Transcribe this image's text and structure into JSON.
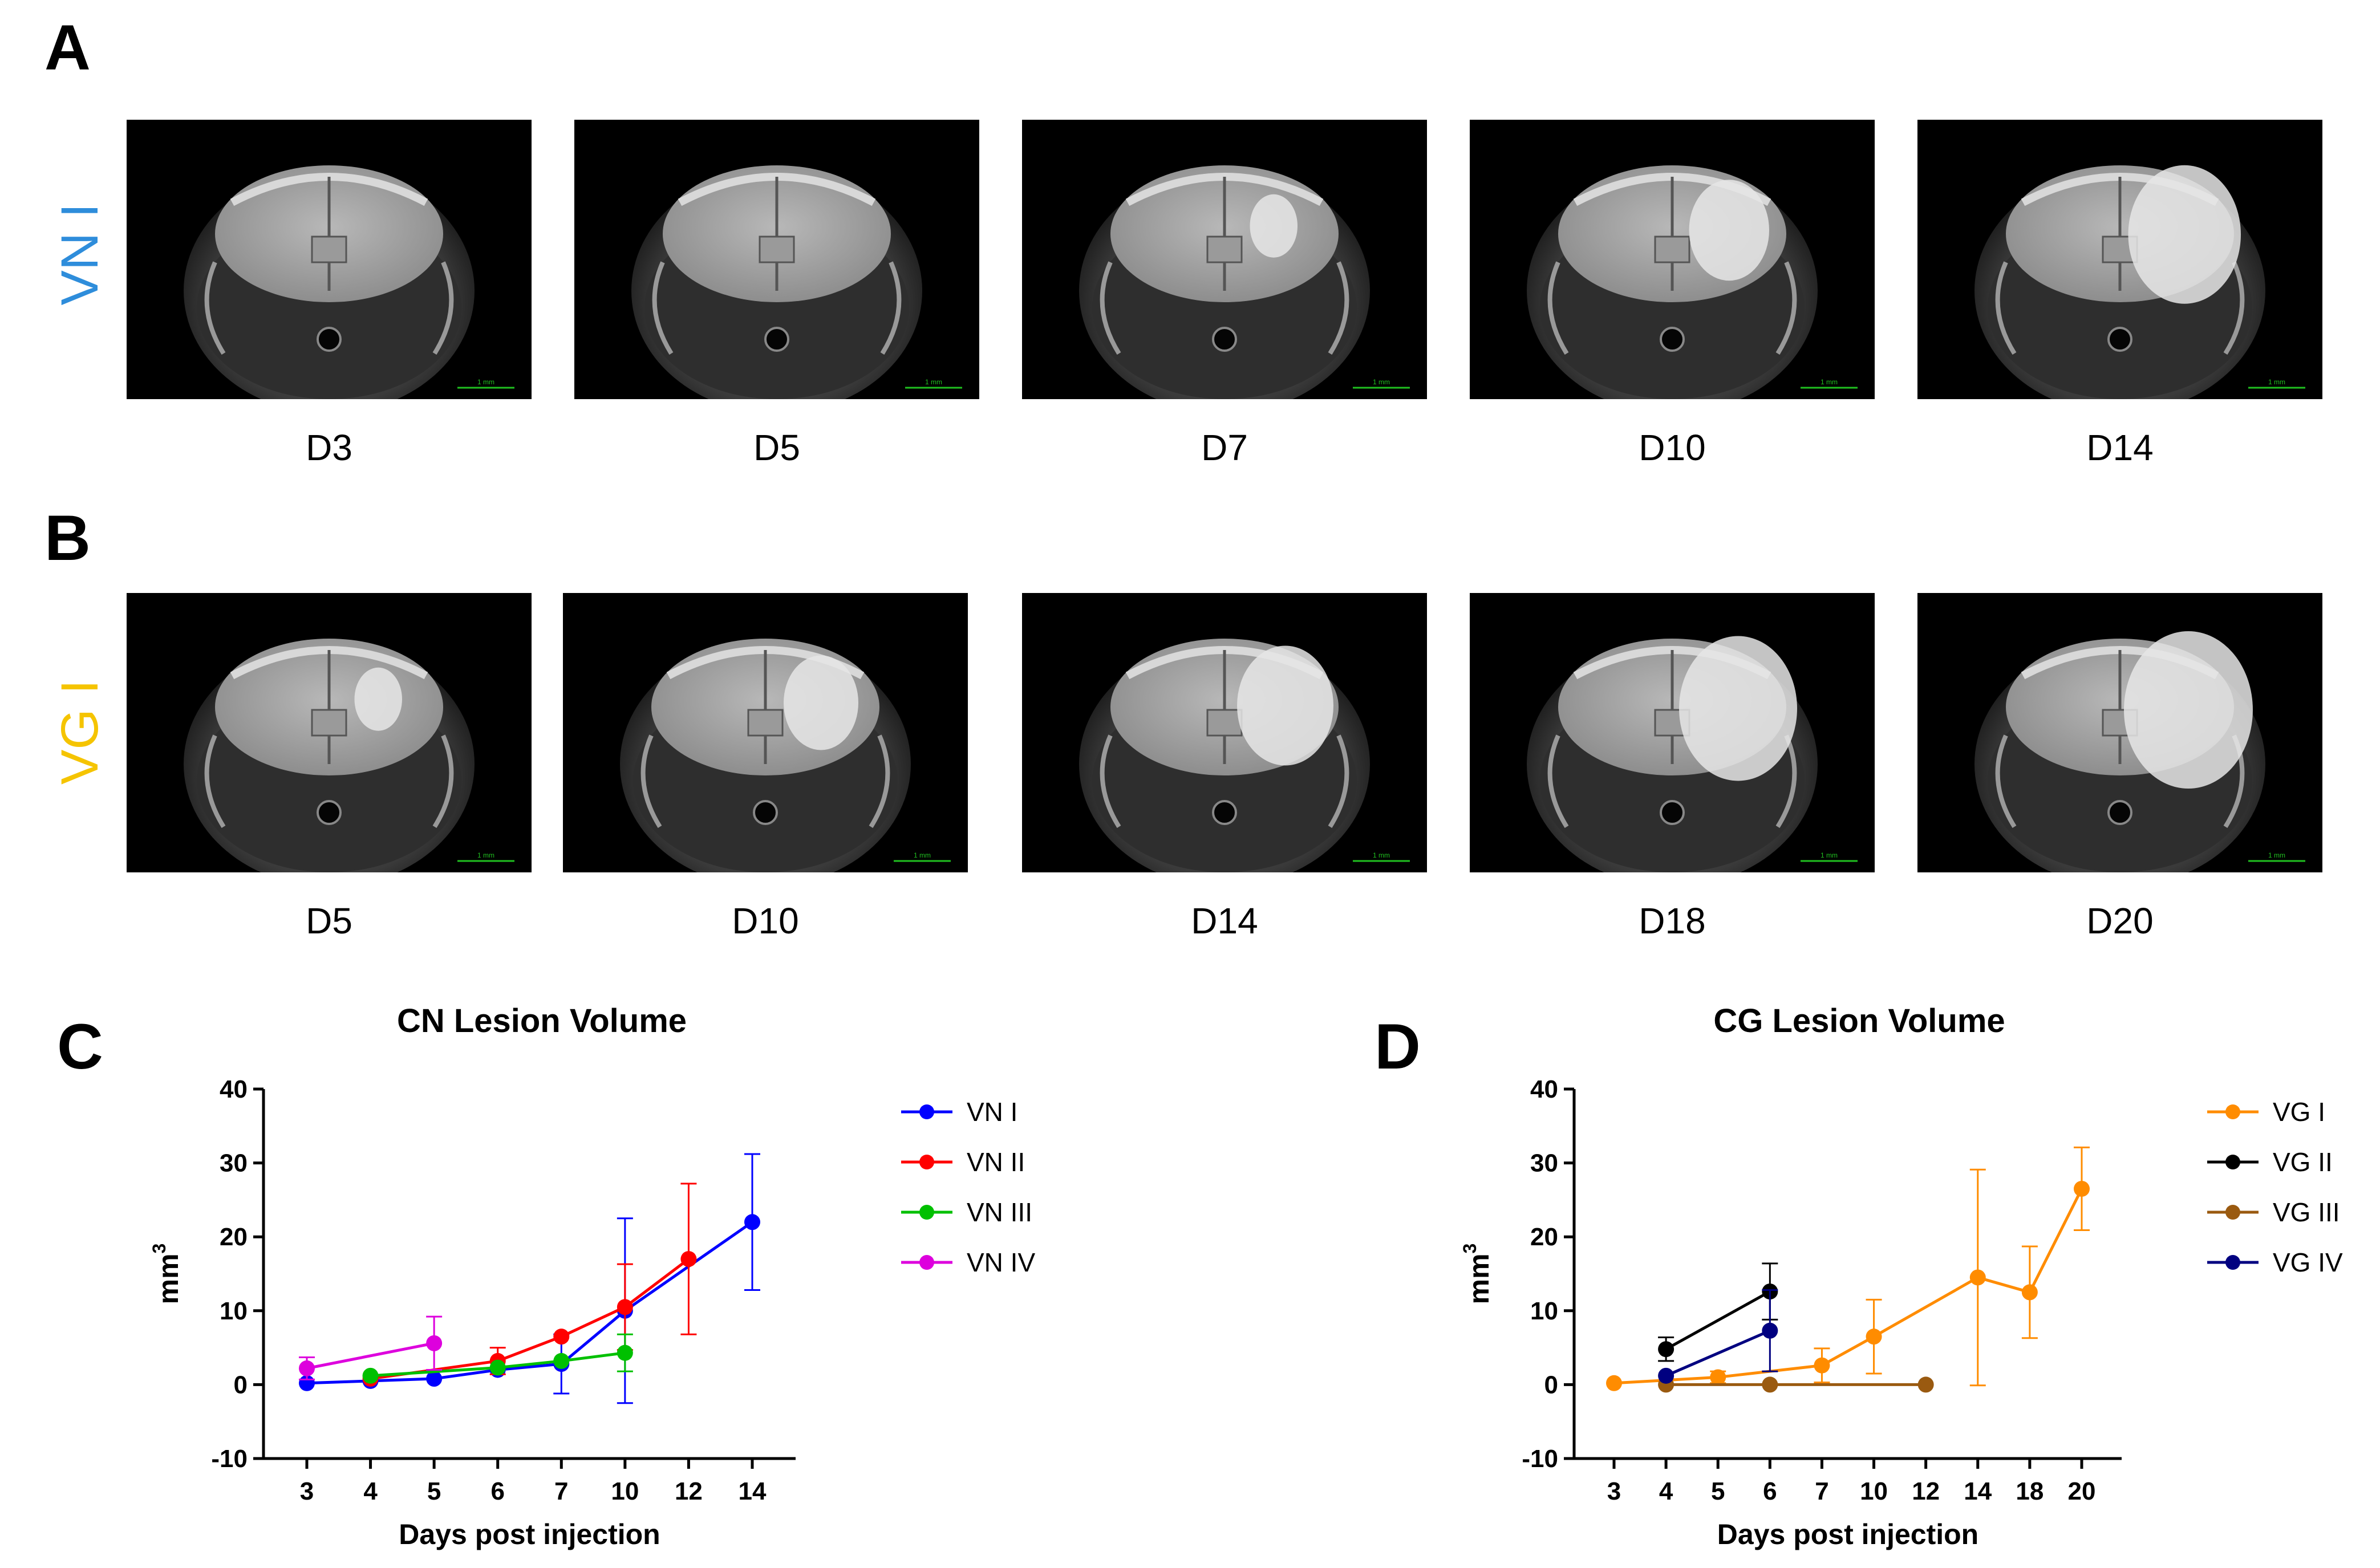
{
  "panels": {
    "a": {
      "letter": "A",
      "row_label": "VN I",
      "row_color": "#2e8ddb",
      "days": [
        "D3",
        "D5",
        "D7",
        "D10",
        "D14"
      ],
      "lesion": [
        0,
        0,
        0.25,
        0.55,
        0.85
      ]
    },
    "b": {
      "letter": "B",
      "row_label": "VG I",
      "row_color": "#f5c400",
      "days": [
        "D5",
        "D10",
        "D14",
        "D18",
        "D20"
      ],
      "lesion": [
        0.25,
        0.5,
        0.7,
        0.9,
        1.0
      ]
    },
    "c": {
      "letter": "C"
    },
    "d": {
      "letter": "D"
    }
  },
  "scale_bar_text": "1 mm",
  "chart_data": [
    {
      "type": "line",
      "title": "CN Lesion Volume",
      "xlabel": "Days post injection",
      "ylabel": "mm",
      "ylabel_sup": "3",
      "x_ticks": [
        "3",
        "4",
        "5",
        "6",
        "7",
        "10",
        "12",
        "14"
      ],
      "y_ticks": [
        "40",
        "30",
        "20",
        "10",
        "0",
        "-10"
      ],
      "ylim": [
        -10,
        40
      ],
      "series": [
        {
          "name": "VN I",
          "color": "#0000ff",
          "points": [
            {
              "x": "3",
              "y": 0.2
            },
            {
              "x": "4",
              "y": 0.5
            },
            {
              "x": "5",
              "y": 0.8
            },
            {
              "x": "6",
              "y": 2
            },
            {
              "x": "7",
              "y": 2.8,
              "err": 4
            },
            {
              "x": "10",
              "y": 10,
              "err": 12.5
            },
            {
              "x": "14",
              "y": 22,
              "err": 9.2
            }
          ]
        },
        {
          "name": "VN II",
          "color": "#ff0000",
          "points": [
            {
              "x": "4",
              "y": 0.8
            },
            {
              "x": "6",
              "y": 3.2,
              "err": 1.8
            },
            {
              "x": "7",
              "y": 6.5
            },
            {
              "x": "10",
              "y": 10.5,
              "err": 5.8
            },
            {
              "x": "12",
              "y": 17,
              "err": 10.2
            }
          ]
        },
        {
          "name": "VN III",
          "color": "#00c000",
          "points": [
            {
              "x": "4",
              "y": 1.2
            },
            {
              "x": "6",
              "y": 2.3
            },
            {
              "x": "7",
              "y": 3.2
            },
            {
              "x": "10",
              "y": 4.3,
              "err": 2.5
            }
          ]
        },
        {
          "name": "VN IV",
          "color": "#dd00dd",
          "points": [
            {
              "x": "3",
              "y": 2.2,
              "err": 1.5
            },
            {
              "x": "5",
              "y": 5.6,
              "err": 3.6
            }
          ]
        }
      ],
      "legend": "right"
    },
    {
      "type": "line",
      "title": "CG Lesion Volume",
      "xlabel": "Days post injection",
      "ylabel": "mm",
      "ylabel_sup": "3",
      "x_ticks": [
        "3",
        "4",
        "5",
        "6",
        "7",
        "10",
        "12",
        "14",
        "18",
        "20"
      ],
      "y_ticks": [
        "40",
        "30",
        "20",
        "10",
        "0",
        "-10"
      ],
      "ylim": [
        -10,
        40
      ],
      "series": [
        {
          "name": "VG I",
          "color": "#ff8c00",
          "points": [
            {
              "x": "3",
              "y": 0.2
            },
            {
              "x": "5",
              "y": 1,
              "err": 0.8
            },
            {
              "x": "7",
              "y": 2.6,
              "err": 2.3
            },
            {
              "x": "10",
              "y": 6.5,
              "err": 5
            },
            {
              "x": "14",
              "y": 14.5,
              "err": 14.6
            },
            {
              "x": "18",
              "y": 12.5,
              "err": 6.2
            },
            {
              "x": "20",
              "y": 26.5,
              "err": 5.6
            }
          ]
        },
        {
          "name": "VG II",
          "color": "#000000",
          "points": [
            {
              "x": "4",
              "y": 4.8,
              "err": 1.6
            },
            {
              "x": "6",
              "y": 12.6,
              "err": 3.8
            }
          ]
        },
        {
          "name": "VG III",
          "color": "#9a5a10",
          "points": [
            {
              "x": "4",
              "y": 0
            },
            {
              "x": "6",
              "y": 0
            },
            {
              "x": "12",
              "y": 0
            }
          ]
        },
        {
          "name": "VG IV",
          "color": "#000080",
          "points": [
            {
              "x": "4",
              "y": 1.2
            },
            {
              "x": "6",
              "y": 7.3,
              "err": 5.5
            }
          ]
        }
      ],
      "legend": "right"
    }
  ]
}
